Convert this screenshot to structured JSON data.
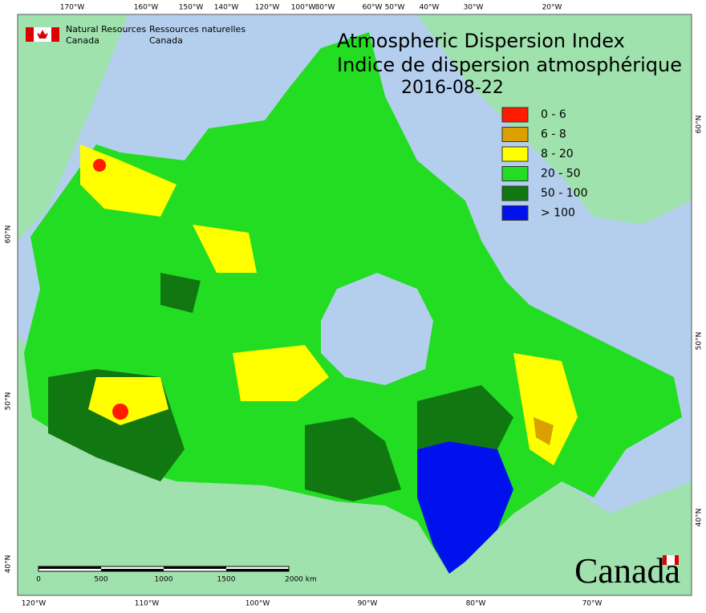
{
  "header": {
    "agency_en": [
      "Natural Resources",
      "Canada"
    ],
    "agency_fr": [
      "Ressources naturelles",
      "Canada"
    ]
  },
  "title": {
    "en": "Atmospheric Dispersion Index",
    "fr": "Indice de dispersion atmosphérique",
    "date": "2016-08-22"
  },
  "legend": [
    {
      "label": "0 - 6",
      "color": "#ff1a00"
    },
    {
      "label": "6 - 8",
      "color": "#d9a000"
    },
    {
      "label": "8 - 20",
      "color": "#ffff00"
    },
    {
      "label": "20 - 50",
      "color": "#22dd22"
    },
    {
      "label": "50 - 100",
      "color": "#117711"
    },
    {
      "label": "> 100",
      "color": "#0011ee"
    }
  ],
  "graticule": {
    "top": [
      "170°W",
      "160°W",
      "150°W",
      "140°W",
      "120°W",
      "100°W",
      "80°W",
      "60°W",
      "50°W",
      "40°W",
      "30°W",
      "20°W"
    ],
    "bottom": [
      "120°W",
      "110°W",
      "100°W",
      "90°W",
      "80°W",
      "70°W"
    ],
    "left": [
      "60°N",
      "50°N",
      "40°N"
    ],
    "right": [
      "60°N",
      "50°N",
      "40°N"
    ]
  },
  "scale_bar": [
    "0",
    "500",
    "1000",
    "1500",
    "2000 km"
  ],
  "wordmark": "Canada"
}
